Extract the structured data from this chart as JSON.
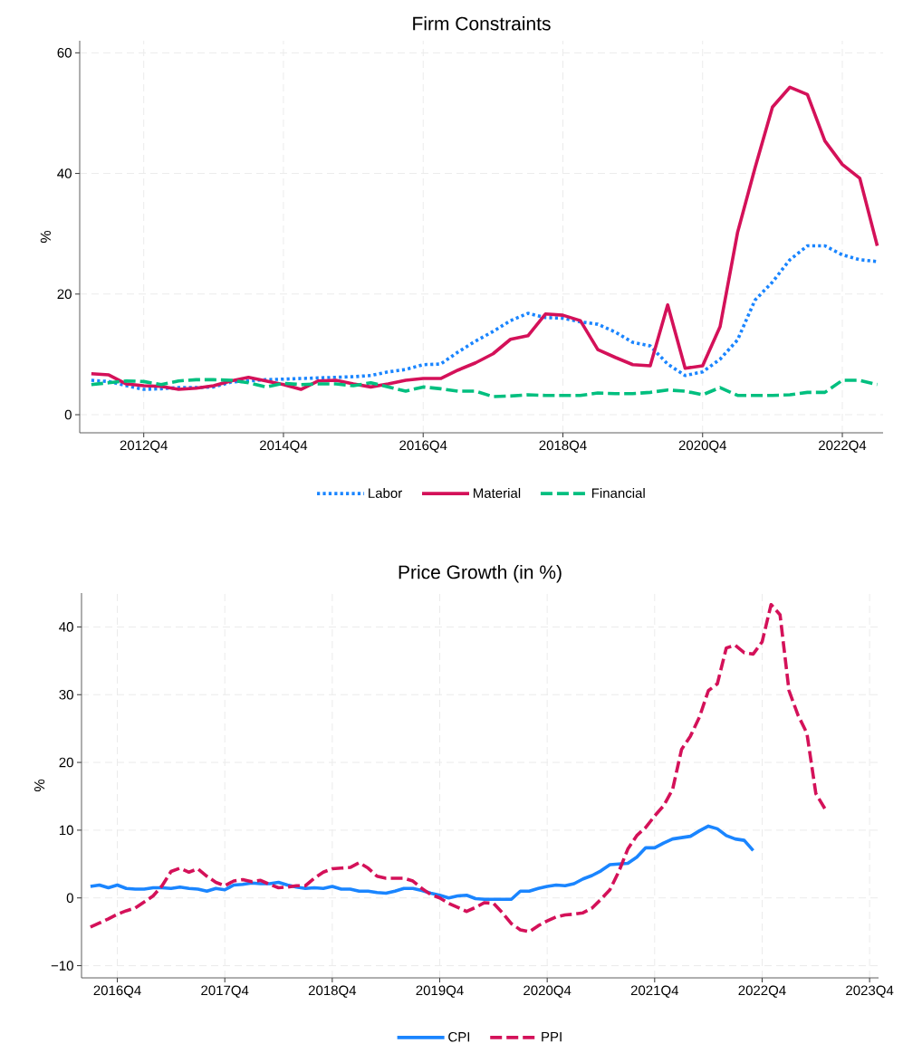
{
  "chart_data": [
    {
      "type": "line",
      "title": "Firm Constraints",
      "ylabel": "%",
      "x": [
        "2012-01",
        "2012-04",
        "2012-07",
        "2012-10",
        "2013-01",
        "2013-04",
        "2013-07",
        "2013-10",
        "2014-01",
        "2014-04",
        "2014-07",
        "2014-10",
        "2015-01",
        "2015-04",
        "2015-07",
        "2015-10",
        "2016-01",
        "2016-04",
        "2016-07",
        "2016-10",
        "2017-01",
        "2017-04",
        "2017-07",
        "2017-10",
        "2018-01",
        "2018-04",
        "2018-07",
        "2018-10",
        "2019-01",
        "2019-04",
        "2019-07",
        "2019-10",
        "2020-01",
        "2020-04",
        "2020-07",
        "2020-10",
        "2021-01",
        "2021-04",
        "2021-07",
        "2021-10",
        "2022-01",
        "2022-04",
        "2022-07",
        "2022-10",
        "2023-01",
        "2023-04"
      ],
      "series": [
        {
          "name": "Labor",
          "color": "#1a85ff",
          "line_style": "dotted",
          "values": [
            5.7,
            5.5,
            4.8,
            4.2,
            4.3,
            4.5,
            4.5,
            4.6,
            5.4,
            5.6,
            5.8,
            5.9,
            6.0,
            6.1,
            6.2,
            6.3,
            6.5,
            7.1,
            7.5,
            8.3,
            8.4,
            10.4,
            12.2,
            13.8,
            15.6,
            16.8,
            16.1,
            16.0,
            15.4,
            15.0,
            13.7,
            12.0,
            11.4,
            8.4,
            6.5,
            7.1,
            9.2,
            12.4,
            19.0,
            22.0,
            25.7,
            28.0,
            28.0,
            26.5,
            25.7,
            25.4
          ]
        },
        {
          "name": "Material",
          "color": "#d41159",
          "line_style": "solid",
          "values": [
            6.8,
            6.6,
            5.1,
            4.8,
            4.7,
            4.2,
            4.4,
            4.8,
            5.6,
            6.2,
            5.6,
            5.0,
            4.2,
            5.6,
            5.7,
            5.1,
            4.6,
            5.1,
            5.7,
            6.0,
            6.0,
            7.4,
            8.6,
            10.1,
            12.5,
            13.1,
            16.7,
            16.5,
            15.6,
            10.8,
            9.5,
            8.3,
            8.1,
            18.2,
            7.7,
            8.1,
            14.6,
            30.2,
            40.9,
            51.0,
            54.3,
            53.1,
            45.4,
            41.5,
            39.2,
            28.0
          ]
        },
        {
          "name": "Financial",
          "color": "#00bf7f",
          "line_style": "dashed",
          "values": [
            5.0,
            5.3,
            5.6,
            5.5,
            5.0,
            5.6,
            5.8,
            5.8,
            5.7,
            5.3,
            4.6,
            5.2,
            5.0,
            5.1,
            5.1,
            4.8,
            5.3,
            4.6,
            3.9,
            4.6,
            4.3,
            3.9,
            3.9,
            3.0,
            3.1,
            3.3,
            3.2,
            3.2,
            3.2,
            3.6,
            3.5,
            3.5,
            3.7,
            4.1,
            3.9,
            3.3,
            4.5,
            3.2,
            3.2,
            3.2,
            3.3,
            3.7,
            3.7,
            5.7,
            5.7,
            5.0
          ]
        }
      ],
      "xlim": [
        "2011-11",
        "2023-05"
      ],
      "xticks": [
        {
          "value": "2012-10",
          "label": "2012Q4"
        },
        {
          "value": "2014-10",
          "label": "2014Q4"
        },
        {
          "value": "2016-10",
          "label": "2016Q4"
        },
        {
          "value": "2018-10",
          "label": "2018Q4"
        },
        {
          "value": "2020-10",
          "label": "2020Q4"
        },
        {
          "value": "2022-10",
          "label": "2022Q4"
        }
      ],
      "ylim": [
        -3,
        62
      ],
      "yticks": [
        0,
        20,
        40,
        60
      ],
      "grid": true,
      "legend": "bottom"
    },
    {
      "type": "line",
      "title": "Price Growth (in %)",
      "ylabel": "%",
      "x": [
        "2016-07",
        "2016-08",
        "2016-09",
        "2016-10",
        "2016-11",
        "2016-12",
        "2017-01",
        "2017-02",
        "2017-03",
        "2017-04",
        "2017-05",
        "2017-06",
        "2017-07",
        "2017-08",
        "2017-09",
        "2017-10",
        "2017-11",
        "2017-12",
        "2018-01",
        "2018-02",
        "2018-03",
        "2018-04",
        "2018-05",
        "2018-06",
        "2018-07",
        "2018-08",
        "2018-09",
        "2018-10",
        "2018-11",
        "2018-12",
        "2019-01",
        "2019-02",
        "2019-03",
        "2019-04",
        "2019-05",
        "2019-06",
        "2019-07",
        "2019-08",
        "2019-09",
        "2019-10",
        "2019-11",
        "2019-12",
        "2020-01",
        "2020-02",
        "2020-03",
        "2020-04",
        "2020-05",
        "2020-06",
        "2020-07",
        "2020-08",
        "2020-09",
        "2020-10",
        "2020-11",
        "2020-12",
        "2021-01",
        "2021-02",
        "2021-03",
        "2021-04",
        "2021-05",
        "2021-06",
        "2021-07",
        "2021-08",
        "2021-09",
        "2021-10",
        "2021-11",
        "2021-12",
        "2022-01",
        "2022-02",
        "2022-03",
        "2022-04",
        "2022-05",
        "2022-06",
        "2022-07",
        "2022-08",
        "2022-09",
        "2022-10",
        "2022-11",
        "2022-12",
        "2023-01",
        "2023-02",
        "2023-03",
        "2023-04",
        "2023-05"
      ],
      "series": [
        {
          "name": "CPI",
          "color": "#1a85ff",
          "line_style": "solid",
          "x": [
            "2016-07",
            "2016-08",
            "2016-09",
            "2016-10",
            "2016-11",
            "2016-12",
            "2017-01",
            "2017-02",
            "2017-03",
            "2017-04",
            "2017-05",
            "2017-06",
            "2017-07",
            "2017-08",
            "2017-09",
            "2017-10",
            "2017-11",
            "2017-12",
            "2018-01",
            "2018-02",
            "2018-03",
            "2018-04",
            "2018-05",
            "2018-06",
            "2018-07",
            "2018-08",
            "2018-09",
            "2018-10",
            "2018-11",
            "2018-12",
            "2019-01",
            "2019-02",
            "2019-03",
            "2019-04",
            "2019-05",
            "2019-06",
            "2019-07",
            "2019-08",
            "2019-09",
            "2019-10",
            "2019-11",
            "2019-12",
            "2020-01",
            "2020-02",
            "2020-03",
            "2020-04",
            "2020-05",
            "2020-06",
            "2020-07",
            "2020-08",
            "2020-09",
            "2020-10",
            "2020-11",
            "2020-12",
            "2021-01",
            "2021-02",
            "2021-03",
            "2021-04",
            "2021-05",
            "2021-06",
            "2021-07",
            "2021-08",
            "2021-09",
            "2021-10",
            "2021-11",
            "2021-12",
            "2022-01",
            "2022-02",
            "2022-03",
            "2022-04",
            "2022-05",
            "2022-06",
            "2022-07",
            "2022-08",
            "2022-09"
          ],
          "values": [
            1.7,
            1.9,
            1.5,
            1.9,
            1.4,
            1.3,
            1.3,
            1.5,
            1.5,
            1.4,
            1.6,
            1.4,
            1.3,
            1.0,
            1.4,
            1.2,
            1.9,
            2.0,
            2.2,
            2.1,
            2.1,
            2.3,
            1.9,
            1.6,
            1.4,
            1.5,
            1.4,
            1.7,
            1.3,
            1.3,
            1.0,
            1.0,
            0.8,
            0.7,
            1.0,
            1.4,
            1.4,
            1.1,
            0.7,
            0.4,
            0.0,
            0.3,
            0.4,
            -0.1,
            -0.2,
            -0.2,
            -0.2,
            -0.2,
            1.0,
            1.0,
            1.4,
            1.7,
            1.9,
            1.8,
            2.1,
            2.8,
            3.3,
            4.0,
            4.9,
            5.0,
            5.1,
            6.0,
            7.4,
            7.4,
            8.1,
            8.7,
            8.9,
            9.1,
            9.9,
            10.6,
            10.2,
            9.2,
            8.7,
            8.5,
            7.0
          ]
        },
        {
          "name": "PPI",
          "color": "#d41159",
          "line_style": "dashed",
          "values": [
            -4.3,
            -3.7,
            -3.1,
            -2.4,
            -1.9,
            -1.5,
            -0.6,
            0.3,
            1.8,
            3.9,
            4.4,
            3.8,
            4.3,
            3.2,
            2.3,
            1.8,
            2.5,
            2.7,
            2.4,
            2.6,
            2.0,
            1.5,
            1.6,
            1.8,
            1.8,
            2.9,
            3.8,
            4.3,
            4.4,
            4.5,
            5.2,
            4.4,
            3.2,
            2.9,
            2.9,
            2.9,
            2.5,
            1.4,
            0.5,
            0.0,
            -0.8,
            -1.4,
            -2.0,
            -1.4,
            -0.7,
            -0.8,
            -2.2,
            -3.8,
            -4.7,
            -5.0,
            -4.1,
            -3.4,
            -2.8,
            -2.5,
            -2.4,
            -2.2,
            -1.5,
            -0.2,
            1.2,
            3.9,
            7.2,
            9.2,
            10.4,
            12.1,
            13.6,
            16.0,
            21.9,
            23.9,
            26.7,
            30.6,
            31.6,
            36.9,
            37.3,
            36.2,
            36.0,
            37.8,
            43.3,
            41.8,
            30.6,
            27.0,
            24.3,
            15.4,
            13.2
          ]
        }
      ],
      "xlim": [
        "2016-06",
        "2023-11"
      ],
      "xticks": [
        {
          "value": "2016-10",
          "label": "2016Q4"
        },
        {
          "value": "2017-10",
          "label": "2017Q4"
        },
        {
          "value": "2018-10",
          "label": "2018Q4"
        },
        {
          "value": "2019-10",
          "label": "2019Q4"
        },
        {
          "value": "2020-10",
          "label": "2020Q4"
        },
        {
          "value": "2021-10",
          "label": "2021Q4"
        },
        {
          "value": "2022-10",
          "label": "2022Q4"
        },
        {
          "value": "2023-10",
          "label": "2023Q4"
        }
      ],
      "ylim": [
        -11.8,
        45
      ],
      "yticks": [
        {
          "value": -10,
          "label": "−10"
        },
        0,
        10,
        20,
        30,
        40
      ],
      "grid": true,
      "legend": "bottom"
    }
  ]
}
